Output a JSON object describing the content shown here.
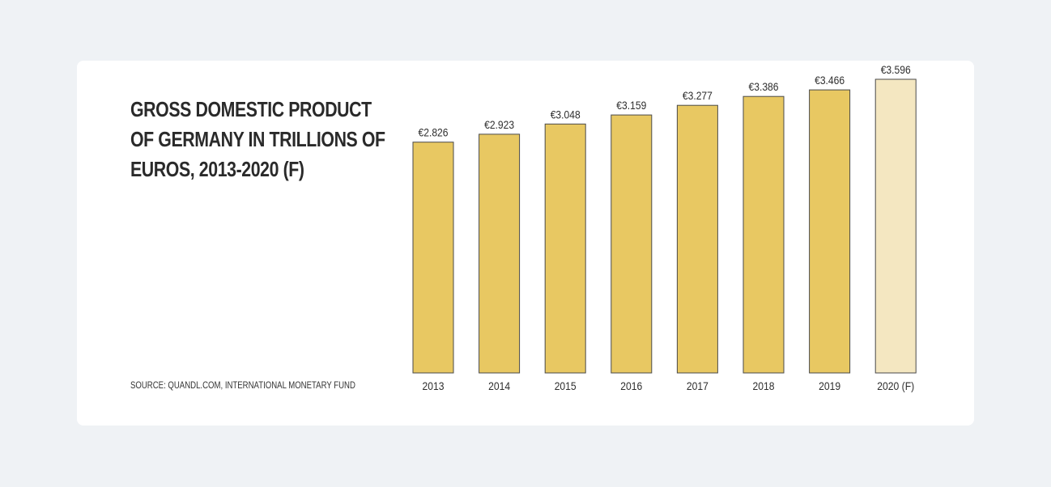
{
  "chart_data": {
    "type": "bar",
    "title_lines": [
      "GROSS DOMESTIC PRODUCT",
      "OF GERMANY IN TRILLIONS OF",
      "EUROS, 2013-2020 (F)"
    ],
    "source": "SOURCE: QUANDL.COM, INTERNATIONAL MONETARY FUND",
    "categories": [
      "2013",
      "2014",
      "2015",
      "2016",
      "2017",
      "2018",
      "2019",
      "2020 (F)"
    ],
    "values": [
      2.826,
      2.923,
      3.048,
      3.159,
      3.277,
      3.386,
      3.466,
      3.596
    ],
    "value_labels": [
      "€2.826",
      "€2.923",
      "€3.048",
      "€3.159",
      "€3.277",
      "€3.386",
      "€3.466",
      "€3.596"
    ],
    "forecast": [
      false,
      false,
      false,
      false,
      false,
      false,
      false,
      true
    ],
    "ylim": [
      0,
      3.596
    ],
    "grid": false,
    "colors": {
      "bar": "#e8c862",
      "bar_forecast": "#f4e7c1",
      "bar_outline": "#4a4a4a",
      "text": "#2e2e2e"
    }
  }
}
